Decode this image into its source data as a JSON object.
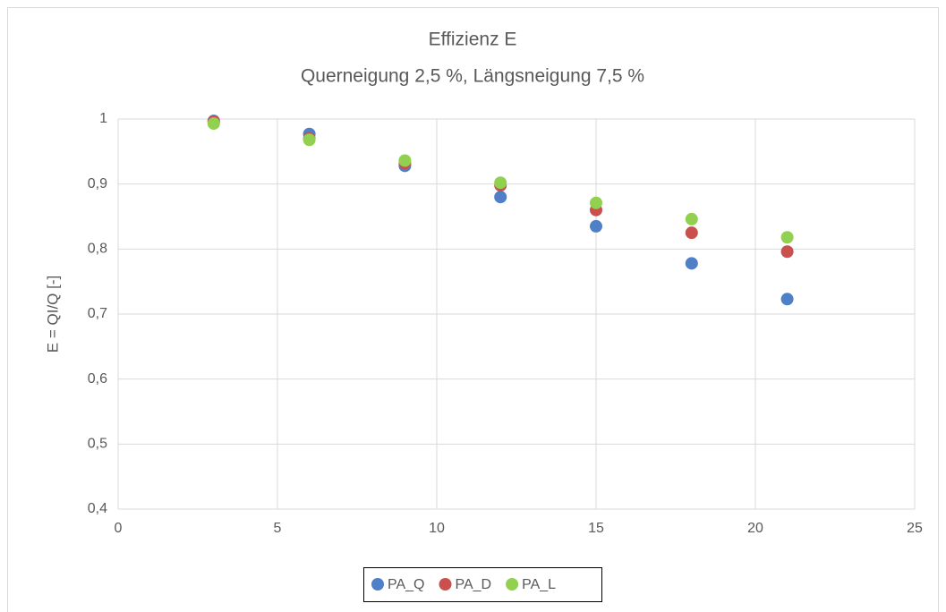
{
  "chart_data": {
    "type": "scatter",
    "title": "Effizienz E",
    "subtitle": "Querneigung 2,5 %, Längsneigung 7,5 %",
    "y_label": "E = QI/Q [-]",
    "x": [
      3,
      6,
      9,
      12,
      15,
      18,
      21
    ],
    "series": [
      {
        "name": "PA_Q",
        "color": "#4f7fc6",
        "values": [
          0.997,
          0.977,
          0.928,
          0.88,
          0.835,
          0.778,
          0.723
        ]
      },
      {
        "name": "PA_D",
        "color": "#c9504d",
        "values": [
          0.996,
          0.97,
          0.932,
          0.898,
          0.86,
          0.825,
          0.796
        ]
      },
      {
        "name": "PA_L",
        "color": "#92d050",
        "values": [
          0.993,
          0.968,
          0.936,
          0.902,
          0.871,
          0.846,
          0.818
        ]
      }
    ],
    "xlim": [
      0,
      25
    ],
    "xticks": [
      0,
      5,
      10,
      15,
      20,
      25
    ],
    "ylim": [
      0.4,
      1
    ],
    "yticks": [
      {
        "value": 0.4,
        "label": "0,4"
      },
      {
        "value": 0.5,
        "label": "0,5"
      },
      {
        "value": 0.6,
        "label": "0,6"
      },
      {
        "value": 0.7,
        "label": "0,7"
      },
      {
        "value": 0.8,
        "label": "0,8"
      },
      {
        "value": 0.9,
        "label": "0,9"
      },
      1
    ],
    "grid": true,
    "legend": "bottom"
  }
}
